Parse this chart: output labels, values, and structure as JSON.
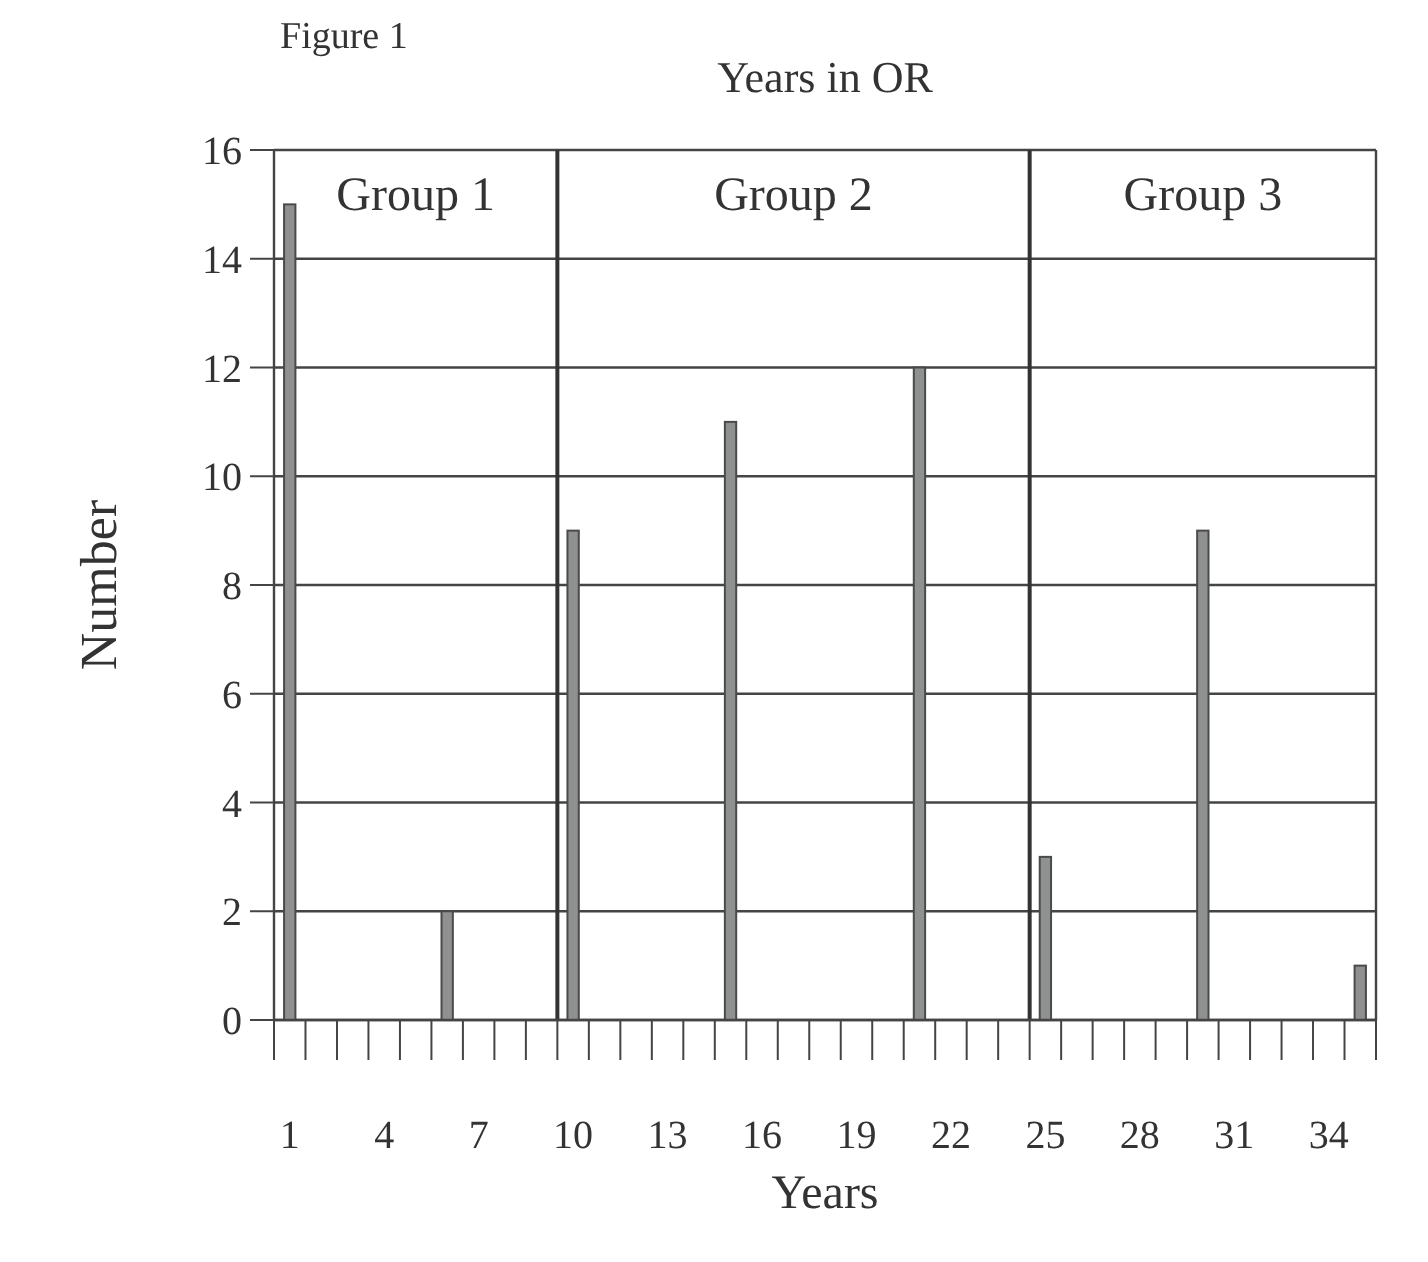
{
  "chart_data": {
    "type": "bar",
    "title": "Years in OR",
    "xlabel": "Years",
    "ylabel": "Number",
    "annotations": [
      "Figure 1",
      "Group 1",
      "Group 2",
      "Group 3"
    ],
    "categories": [
      "1",
      null,
      null,
      "4",
      null,
      null,
      "7",
      null,
      null,
      "10",
      null,
      null,
      "13",
      null,
      null,
      "16",
      null,
      null,
      "19",
      null,
      null,
      "22",
      null,
      null,
      "25",
      null,
      null,
      "28",
      null,
      null,
      "31",
      null,
      null,
      "34",
      null
    ],
    "values": [
      15,
      0,
      0,
      0,
      0,
      2,
      0,
      0,
      0,
      9,
      0,
      0,
      0,
      0,
      11,
      0,
      0,
      0,
      0,
      0,
      12,
      0,
      0,
      0,
      3,
      0,
      0,
      0,
      0,
      9,
      0,
      0,
      0,
      0,
      1
    ],
    "color": "#8f9191",
    "ylim": [
      0,
      16
    ],
    "yticks": [
      0,
      2,
      4,
      6,
      8,
      10,
      12,
      14,
      16
    ],
    "grid": "y"
  }
}
